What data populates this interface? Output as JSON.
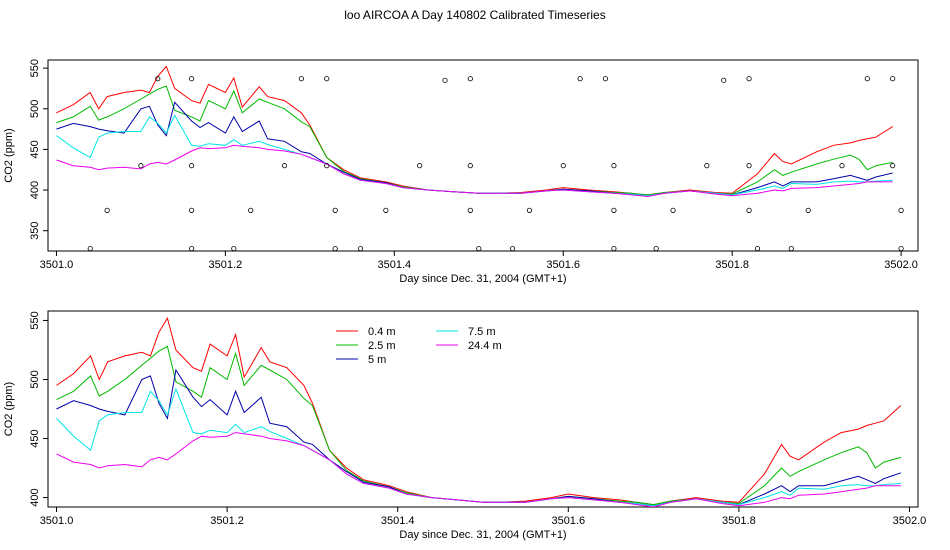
{
  "title": "loo AIRCOA A  Day 140802  Calibrated Timeseries",
  "chart_data": [
    {
      "type": "line",
      "xlabel": "Day since Dec. 31, 2004 (GMT+1)",
      "ylabel": "CO2 (ppm)",
      "xlim": [
        3500.99,
        3502.02
      ],
      "ylim": [
        325,
        560
      ],
      "xticks": [
        "3501.0",
        "3501.2",
        "3501.4",
        "3501.6",
        "3501.8",
        "3502.0"
      ],
      "xtick_values": [
        3501.0,
        3501.2,
        3501.4,
        3501.6,
        3501.8,
        3502.0
      ],
      "yticks": [
        "350",
        "400",
        "450",
        "500",
        "550"
      ],
      "ytick_values": [
        350,
        400,
        450,
        500,
        550
      ],
      "legend": "none",
      "series": [
        {
          "key": "s04",
          "color": "#ff0000",
          "x": [
            3501.0,
            3501.02,
            3501.04,
            3501.05,
            3501.06,
            3501.08,
            3501.1,
            3501.11,
            3501.12,
            3501.13,
            3501.14,
            3501.16,
            3501.17,
            3501.18,
            3501.2,
            3501.21,
            3501.22,
            3501.24,
            3501.25,
            3501.27,
            3501.29,
            3501.3,
            3501.32,
            3501.34,
            3501.36,
            3501.39,
            3501.41,
            3501.44,
            3501.47,
            3501.5,
            3501.52,
            3501.55,
            3501.58,
            3501.6,
            3501.63,
            3501.66,
            3501.68,
            3501.7,
            3501.72,
            3501.75,
            3501.78,
            3501.8,
            3501.83,
            3501.85,
            3501.86,
            3501.87,
            3501.9,
            3501.92,
            3501.94,
            3501.95,
            3501.96,
            3501.97,
            3501.99
          ],
          "y": [
            495,
            505,
            520,
            500,
            515,
            520,
            523,
            520,
            540,
            552,
            525,
            510,
            507,
            530,
            520,
            538,
            502,
            527,
            515,
            510,
            495,
            480,
            440,
            425,
            415,
            410,
            405,
            400,
            398,
            396,
            396,
            397,
            400,
            403,
            400,
            398,
            396,
            394,
            397,
            400,
            397,
            396,
            420,
            445,
            435,
            432,
            447,
            455,
            458,
            461,
            463,
            465,
            478
          ]
        },
        {
          "key": "s25",
          "color": "#00bb00",
          "x": [
            3501.0,
            3501.02,
            3501.04,
            3501.05,
            3501.06,
            3501.08,
            3501.1,
            3501.11,
            3501.12,
            3501.13,
            3501.14,
            3501.16,
            3501.17,
            3501.18,
            3501.2,
            3501.21,
            3501.22,
            3501.24,
            3501.25,
            3501.27,
            3501.29,
            3501.3,
            3501.32,
            3501.34,
            3501.36,
            3501.39,
            3501.41,
            3501.44,
            3501.47,
            3501.5,
            3501.52,
            3501.55,
            3501.58,
            3501.6,
            3501.63,
            3501.66,
            3501.68,
            3501.7,
            3501.72,
            3501.75,
            3501.78,
            3501.8,
            3501.83,
            3501.85,
            3501.86,
            3501.87,
            3501.9,
            3501.92,
            3501.94,
            3501.95,
            3501.96,
            3501.97,
            3501.99
          ],
          "y": [
            483,
            490,
            503,
            486,
            490,
            500,
            512,
            518,
            524,
            528,
            498,
            490,
            485,
            510,
            500,
            522,
            495,
            512,
            508,
            500,
            484,
            478,
            440,
            423,
            414,
            409,
            404,
            400,
            398,
            396,
            396,
            396,
            399,
            401,
            399,
            397,
            396,
            394,
            397,
            399,
            396,
            395,
            410,
            425,
            418,
            422,
            432,
            438,
            443,
            438,
            425,
            430,
            434
          ]
        },
        {
          "key": "s5",
          "color": "#0000aa",
          "x": [
            3501.0,
            3501.02,
            3501.04,
            3501.05,
            3501.06,
            3501.08,
            3501.1,
            3501.11,
            3501.12,
            3501.13,
            3501.14,
            3501.16,
            3501.17,
            3501.18,
            3501.2,
            3501.21,
            3501.22,
            3501.24,
            3501.25,
            3501.27,
            3501.29,
            3501.3,
            3501.32,
            3501.34,
            3501.36,
            3501.39,
            3501.41,
            3501.44,
            3501.47,
            3501.5,
            3501.52,
            3501.55,
            3501.58,
            3501.6,
            3501.63,
            3501.66,
            3501.68,
            3501.7,
            3501.72,
            3501.75,
            3501.78,
            3501.8,
            3501.83,
            3501.85,
            3501.86,
            3501.87,
            3501.9,
            3501.92,
            3501.94,
            3501.95,
            3501.96,
            3501.97,
            3501.99
          ],
          "y": [
            475,
            482,
            478,
            475,
            473,
            470,
            500,
            503,
            480,
            467,
            508,
            485,
            477,
            483,
            470,
            490,
            472,
            485,
            463,
            460,
            447,
            445,
            432,
            422,
            413,
            409,
            403,
            400,
            398,
            396,
            396,
            396,
            399,
            401,
            399,
            396,
            395,
            393,
            396,
            399,
            396,
            394,
            403,
            410,
            405,
            410,
            410,
            414,
            418,
            415,
            412,
            416,
            421
          ]
        },
        {
          "key": "s75",
          "color": "#00e5e5",
          "x": [
            3501.0,
            3501.02,
            3501.04,
            3501.05,
            3501.06,
            3501.08,
            3501.1,
            3501.11,
            3501.12,
            3501.13,
            3501.14,
            3501.16,
            3501.17,
            3501.18,
            3501.2,
            3501.21,
            3501.22,
            3501.24,
            3501.25,
            3501.27,
            3501.29,
            3501.3,
            3501.32,
            3501.34,
            3501.36,
            3501.39,
            3501.41,
            3501.44,
            3501.47,
            3501.5,
            3501.52,
            3501.55,
            3501.58,
            3501.6,
            3501.63,
            3501.66,
            3501.68,
            3501.7,
            3501.72,
            3501.75,
            3501.78,
            3501.8,
            3501.83,
            3501.85,
            3501.86,
            3501.87,
            3501.9,
            3501.92,
            3501.94,
            3501.95,
            3501.96,
            3501.97,
            3501.99
          ],
          "y": [
            467,
            452,
            440,
            465,
            470,
            472,
            472,
            490,
            482,
            470,
            492,
            455,
            454,
            457,
            455,
            462,
            455,
            460,
            456,
            450,
            444,
            440,
            432,
            420,
            412,
            408,
            403,
            400,
            398,
            396,
            396,
            396,
            399,
            400,
            398,
            396,
            395,
            393,
            396,
            399,
            396,
            394,
            400,
            405,
            402,
            408,
            407,
            410,
            411,
            410,
            410,
            411,
            412
          ]
        },
        {
          "key": "s244",
          "color": "#ee00ee",
          "x": [
            3501.0,
            3501.02,
            3501.04,
            3501.05,
            3501.06,
            3501.08,
            3501.1,
            3501.11,
            3501.12,
            3501.13,
            3501.14,
            3501.16,
            3501.17,
            3501.18,
            3501.2,
            3501.21,
            3501.22,
            3501.24,
            3501.25,
            3501.27,
            3501.29,
            3501.3,
            3501.32,
            3501.34,
            3501.36,
            3501.39,
            3501.41,
            3501.44,
            3501.47,
            3501.5,
            3501.52,
            3501.55,
            3501.58,
            3501.6,
            3501.63,
            3501.66,
            3501.68,
            3501.7,
            3501.72,
            3501.75,
            3501.78,
            3501.8,
            3501.83,
            3501.85,
            3501.86,
            3501.87,
            3501.9,
            3501.92,
            3501.94,
            3501.95,
            3501.96,
            3501.97,
            3501.99
          ],
          "y": [
            437,
            430,
            428,
            425,
            427,
            428,
            426,
            432,
            434,
            432,
            437,
            448,
            452,
            451,
            452,
            455,
            454,
            452,
            450,
            448,
            444,
            440,
            432,
            420,
            412,
            408,
            403,
            400,
            398,
            396,
            396,
            396,
            399,
            400,
            398,
            396,
            394,
            392,
            396,
            399,
            395,
            393,
            396,
            400,
            399,
            402,
            403,
            405,
            407,
            408,
            410,
            410,
            410
          ]
        }
      ],
      "markers": {
        "x": [
          3501.04,
          3501.06,
          3501.1,
          3501.12,
          3501.16,
          3501.16,
          3501.16,
          3501.16,
          3501.21,
          3501.23,
          3501.27,
          3501.29,
          3501.32,
          3501.32,
          3501.33,
          3501.33,
          3501.36,
          3501.39,
          3501.43,
          3501.46,
          3501.49,
          3501.49,
          3501.49,
          3501.5,
          3501.54,
          3501.56,
          3501.6,
          3501.62,
          3501.65,
          3501.66,
          3501.66,
          3501.66,
          3501.71,
          3501.73,
          3501.77,
          3501.79,
          3501.82,
          3501.82,
          3501.82,
          3501.83,
          3501.87,
          3501.89,
          3501.93,
          3501.96,
          3501.99,
          3501.99,
          3502.0,
          3502.0
        ],
        "y": [
          328,
          375,
          430,
          537,
          537,
          430,
          375,
          328,
          328,
          375,
          430,
          537,
          537,
          430,
          375,
          328,
          328,
          375,
          430,
          535,
          537,
          430,
          375,
          328,
          328,
          375,
          430,
          537,
          537,
          430,
          375,
          328,
          328,
          375,
          430,
          535,
          537,
          430,
          375,
          328,
          328,
          375,
          430,
          537,
          537,
          430,
          375,
          328
        ]
      }
    },
    {
      "type": "line",
      "xlabel": "Day since Dec. 31, 2004 (GMT+1)",
      "ylabel": "CO2 (ppm)",
      "xlim": [
        3500.99,
        3502.01
      ],
      "ylim": [
        392,
        558
      ],
      "xticks": [
        "3501.0",
        "3501.2",
        "3501.4",
        "3501.6",
        "3501.8",
        "3502.0"
      ],
      "xtick_values": [
        3501.0,
        3501.2,
        3501.4,
        3501.6,
        3501.8,
        3502.0
      ],
      "yticks": [
        "400",
        "450",
        "500",
        "550"
      ],
      "ytick_values": [
        400,
        450,
        500,
        550
      ],
      "legend": "top-left",
      "series_ref": "same as panel 1",
      "legend_entries": [
        {
          "name": "0.4 m",
          "color": "#ff0000"
        },
        {
          "name": "2.5 m",
          "color": "#00bb00"
        },
        {
          "name": "5 m",
          "color": "#0000aa"
        },
        {
          "name": "7.5 m",
          "color": "#00e5e5"
        },
        {
          "name": "24.4 m",
          "color": "#ee00ee"
        }
      ]
    }
  ]
}
